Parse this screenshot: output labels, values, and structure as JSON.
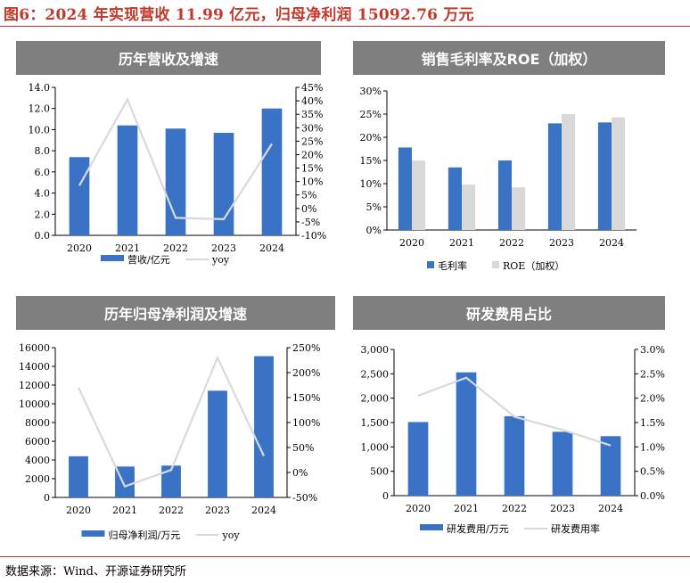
{
  "figure_title": "图6：2024 年实现营收 11.99 亿元，归母净利润 15092.76 万元",
  "source": "数据来源：Wind、开源证券研究所",
  "chart_data": [
    {
      "id": "revenue",
      "type": "bar+line",
      "title": "历年营收及增速",
      "categories": [
        "2020",
        "2021",
        "2022",
        "2023",
        "2024"
      ],
      "series": [
        {
          "name": "营收/亿元",
          "kind": "bar",
          "axis": "left",
          "values": [
            7.4,
            10.4,
            10.1,
            9.7,
            12.0
          ]
        },
        {
          "name": "yoy",
          "kind": "line",
          "axis": "right",
          "values": [
            8.5,
            40.5,
            -3.5,
            -4.0,
            24.0
          ]
        }
      ],
      "ylim_left": [
        0,
        14
      ],
      "ytick_step_left": 2,
      "ytick_decimals_left": 1,
      "ylim_right": [
        -10,
        45
      ],
      "ytick_step_right": 5,
      "right_percent": true,
      "bar_color": "#3a73c6",
      "line_color": "#d9d9d9",
      "legend": "bottom"
    },
    {
      "id": "margin",
      "type": "bar",
      "title": "销售毛利率及ROE（加权）",
      "categories": [
        "2020",
        "2021",
        "2022",
        "2023",
        "2024"
      ],
      "series": [
        {
          "name": "毛利率",
          "kind": "bar",
          "color": "#3a73c6",
          "values": [
            17.8,
            13.5,
            15.0,
            23.0,
            23.2
          ]
        },
        {
          "name": "ROE（加权）",
          "kind": "bar",
          "color": "#d9d9d9",
          "values": [
            15.0,
            9.8,
            9.2,
            25.0,
            24.3
          ]
        }
      ],
      "ylim_left": [
        0,
        30
      ],
      "ytick_step_left": 5,
      "left_percent": true,
      "legend": "bottom"
    },
    {
      "id": "net_profit",
      "type": "bar+line",
      "title": "历年归母净利润及增速",
      "categories": [
        "2020",
        "2021",
        "2022",
        "2023",
        "2024"
      ],
      "series": [
        {
          "name": "归母净利润/万元",
          "kind": "bar",
          "axis": "left",
          "values": [
            4400,
            3300,
            3400,
            11400,
            15093
          ]
        },
        {
          "name": "yoy",
          "kind": "line",
          "axis": "right",
          "values": [
            170,
            -28,
            5,
            230,
            33
          ]
        }
      ],
      "ylim_left": [
        0,
        16000
      ],
      "ytick_step_left": 2000,
      "ylim_right": [
        -50,
        250
      ],
      "ytick_step_right": 50,
      "right_percent": true,
      "bar_color": "#3a73c6",
      "line_color": "#d9d9d9",
      "legend": "bottom"
    },
    {
      "id": "rd",
      "type": "bar+line",
      "title": "研发费用占比",
      "categories": [
        "2020",
        "2021",
        "2022",
        "2023",
        "2024"
      ],
      "series": [
        {
          "name": "研发费用/万元",
          "kind": "bar",
          "axis": "left",
          "values": [
            1510,
            2530,
            1630,
            1310,
            1220
          ]
        },
        {
          "name": "研发费用率",
          "kind": "line",
          "axis": "right",
          "values": [
            2.05,
            2.42,
            1.62,
            1.35,
            1.03
          ]
        }
      ],
      "ylim_left": [
        0,
        3000
      ],
      "ytick_step_left": 500,
      "left_thousands": true,
      "ylim_right": [
        0,
        3.0
      ],
      "ytick_step_right": 0.5,
      "ytick_decimals_right": 1,
      "right_percent": true,
      "bar_color": "#3a73c6",
      "line_color": "#d9d9d9",
      "legend": "bottom"
    }
  ]
}
